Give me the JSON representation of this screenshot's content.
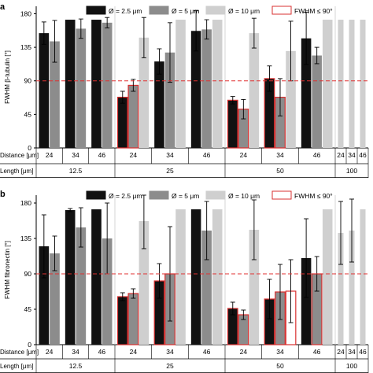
{
  "legend": {
    "items": [
      {
        "label": "Ø = 2.5 μm",
        "fill": "#111111",
        "stroke": "#111111"
      },
      {
        "label": "Ø = 5 μm",
        "fill": "#8c8c8c",
        "stroke": "#8c8c8c"
      },
      {
        "label": "Ø = 10 μm",
        "fill": "#cfcfcf",
        "stroke": "#cfcfcf"
      },
      {
        "label": "FWHM ≤ 90°",
        "fill": "#ffffff",
        "stroke": "#d93030"
      }
    ]
  },
  "colors": {
    "d25": "#111111",
    "d5": "#8c8c8c",
    "d10": "#cfcfcf",
    "highlight_edge": "#d93030",
    "threshold_line": "#e03030"
  },
  "table": {
    "distance_label": "Distance [μm]",
    "length_label": "Length [μm]",
    "distances": [
      "24",
      "34",
      "46",
      "24",
      "34",
      "46",
      "24",
      "34",
      "46",
      "24",
      "34",
      "46"
    ],
    "lengths": [
      "12.5",
      "25",
      "50",
      "100"
    ]
  },
  "chart_data": [
    {
      "type": "bar",
      "panel_label": "a",
      "ylabel": "FWHM β-tubulin [°]",
      "ylim": [
        0,
        190
      ],
      "yticks": [
        0,
        45,
        90,
        135,
        180
      ],
      "threshold": 90,
      "distances": [
        "24",
        "34",
        "46",
        "24",
        "34",
        "46",
        "24",
        "34",
        "46",
        "24",
        "34",
        "46"
      ],
      "lengths": [
        "12.5",
        "12.5",
        "12.5",
        "25",
        "25",
        "25",
        "50",
        "50",
        "50",
        "100",
        "100",
        "100"
      ],
      "series": [
        {
          "name": "Ø = 2.5 μm",
          "values": [
            154,
            172,
            172,
            68,
            116,
            157,
            64,
            93,
            147,
            null,
            null,
            null
          ],
          "errors": [
            15,
            0,
            0,
            8,
            17,
            27,
            5,
            17,
            35,
            null,
            null,
            null
          ],
          "below_threshold": [
            false,
            false,
            false,
            true,
            false,
            false,
            true,
            true,
            false,
            false,
            false,
            false
          ]
        },
        {
          "name": "Ø = 5 μm",
          "values": [
            143,
            160,
            168,
            84,
            128,
            159,
            52,
            68,
            124,
            null,
            null,
            null
          ],
          "errors": [
            28,
            13,
            7,
            8,
            40,
            13,
            13,
            25,
            11,
            null,
            null,
            null
          ],
          "below_threshold": [
            false,
            false,
            false,
            true,
            false,
            false,
            true,
            true,
            false,
            false,
            false,
            false
          ]
        },
        {
          "name": "Ø = 10 μm",
          "values": [
            null,
            null,
            null,
            148,
            172,
            172,
            154,
            130,
            172,
            172,
            172,
            172
          ],
          "errors": [
            null,
            null,
            null,
            27,
            0,
            0,
            20,
            40,
            0,
            0,
            0,
            0
          ],
          "below_threshold": [
            false,
            false,
            false,
            false,
            false,
            false,
            false,
            false,
            false,
            false,
            false,
            false
          ]
        }
      ]
    },
    {
      "type": "bar",
      "panel_label": "b",
      "ylabel": "FWHM fibronectin [°]",
      "ylim": [
        0,
        190
      ],
      "yticks": [
        0,
        45,
        90,
        135,
        180
      ],
      "threshold": 90,
      "distances": [
        "24",
        "34",
        "46",
        "24",
        "34",
        "46",
        "24",
        "34",
        "46",
        "24",
        "34",
        "46"
      ],
      "lengths": [
        "12.5",
        "12.5",
        "12.5",
        "25",
        "25",
        "25",
        "50",
        "50",
        "50",
        "100",
        "100",
        "100"
      ],
      "series": [
        {
          "name": "Ø = 2.5 μm",
          "values": [
            125,
            171,
            172,
            61,
            81,
            172,
            46,
            58,
            110,
            null,
            null,
            null
          ],
          "errors": [
            40,
            2,
            0,
            5,
            22,
            0,
            8,
            25,
            50,
            null,
            null,
            null
          ],
          "below_threshold": [
            false,
            false,
            false,
            true,
            true,
            false,
            true,
            true,
            false,
            false,
            false,
            false
          ]
        },
        {
          "name": "Ø = 5 μm",
          "values": [
            116,
            149,
            135,
            65,
            90,
            145,
            38,
            67,
            90,
            null,
            null,
            null
          ],
          "errors": [
            22,
            25,
            45,
            6,
            60,
            37,
            6,
            35,
            22,
            null,
            null,
            null
          ],
          "below_threshold": [
            false,
            false,
            false,
            true,
            true,
            false,
            true,
            true,
            true,
            false,
            false,
            false
          ]
        },
        {
          "name": "Ø = 10 μm",
          "values": [
            null,
            null,
            null,
            157,
            172,
            172,
            146,
            68,
            172,
            142,
            145,
            172
          ],
          "errors": [
            null,
            null,
            null,
            35,
            0,
            0,
            38,
            40,
            0,
            40,
            40,
            0
          ],
          "below_threshold": [
            false,
            false,
            false,
            false,
            false,
            false,
            false,
            true,
            false,
            false,
            false,
            false
          ]
        }
      ]
    }
  ]
}
